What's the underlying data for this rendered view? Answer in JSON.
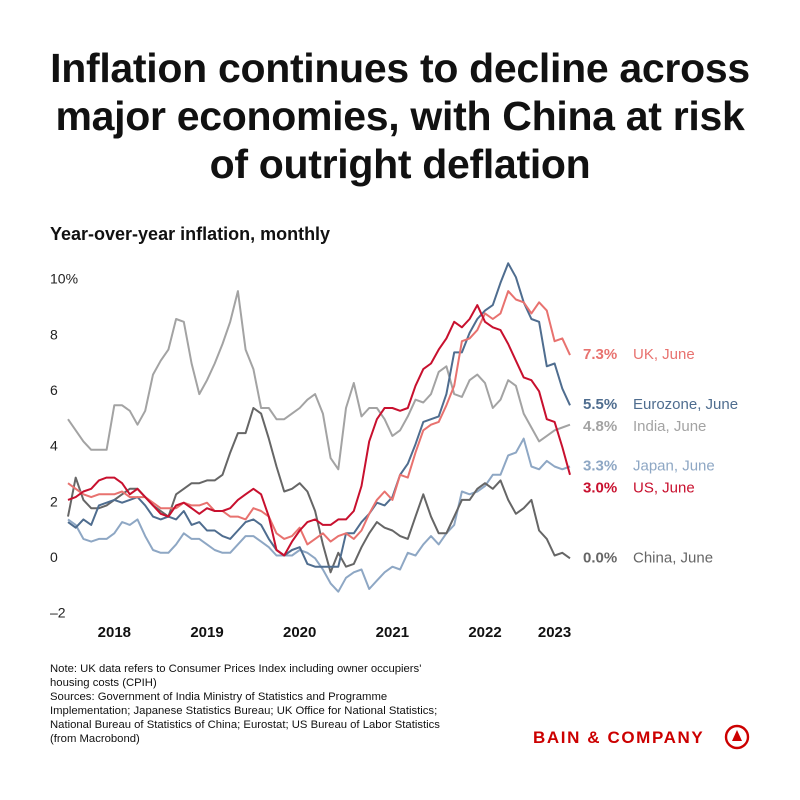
{
  "chart_data": {
    "type": "line",
    "title": "Inflation continues to decline across major economies, with China at risk of outright deflation",
    "subtitle": "Year-over-year inflation, monthly",
    "categories": [
      null,
      null,
      null,
      null,
      null,
      null,
      "2018",
      null,
      null,
      null,
      null,
      null,
      null,
      null,
      null,
      null,
      null,
      null,
      "2019",
      null,
      null,
      null,
      null,
      null,
      null,
      null,
      null,
      null,
      null,
      null,
      "2020",
      null,
      null,
      null,
      null,
      null,
      null,
      null,
      null,
      null,
      null,
      null,
      "2021",
      null,
      null,
      null,
      null,
      null,
      null,
      null,
      null,
      null,
      null,
      null,
      "2022",
      null,
      null,
      null,
      null,
      null,
      null,
      null,
      null,
      "2023",
      null,
      null
    ],
    "ylim": [
      -2,
      10.6
    ],
    "yticks": [
      {
        "value": -2,
        "label": "–2"
      },
      0,
      2,
      4,
      6,
      8,
      {
        "value": 10,
        "label": "10%"
      }
    ],
    "grid": false,
    "series": [
      {
        "name": "India, June",
        "end_label": "4.8%",
        "color": "#a3a3a3",
        "values": [
          5.0,
          4.6,
          4.2,
          3.9,
          3.9,
          3.9,
          5.5,
          5.5,
          5.3,
          4.8,
          5.3,
          6.6,
          7.1,
          7.5,
          8.6,
          8.5,
          7.0,
          5.9,
          6.4,
          7.0,
          7.7,
          8.5,
          9.6,
          7.5,
          6.8,
          5.4,
          5.4,
          5.0,
          5.0,
          5.2,
          5.4,
          5.7,
          5.9,
          5.2,
          3.6,
          3.2,
          5.4,
          6.3,
          5.1,
          5.4,
          5.4,
          5.0,
          4.4,
          4.6,
          5.1,
          5.7,
          5.6,
          5.9,
          6.7,
          6.9,
          5.9,
          5.8,
          6.4,
          6.6,
          6.3,
          5.4,
          5.7,
          6.4,
          6.2,
          5.2,
          4.7,
          4.2,
          4.4,
          4.6,
          4.7,
          4.8
        ]
      },
      {
        "name": "Japan, June",
        "end_label": "3.3%",
        "color": "#8ea7c4",
        "values": [
          1.4,
          1.2,
          0.7,
          0.6,
          0.7,
          0.7,
          0.9,
          1.3,
          1.2,
          1.4,
          0.8,
          0.3,
          0.2,
          0.2,
          0.5,
          0.9,
          0.7,
          0.7,
          0.5,
          0.3,
          0.2,
          0.2,
          0.5,
          0.8,
          0.8,
          0.6,
          0.4,
          0.1,
          0.1,
          0.1,
          0.3,
          0.2,
          0.0,
          -0.4,
          -0.9,
          -1.2,
          -0.7,
          -0.5,
          -0.4,
          -1.1,
          -0.8,
          -0.5,
          -0.3,
          -0.4,
          0.2,
          0.1,
          0.5,
          0.8,
          0.5,
          0.9,
          1.2,
          2.4,
          2.3,
          2.4,
          2.6,
          3.0,
          3.0,
          3.7,
          3.8,
          4.3,
          3.3,
          3.2,
          3.5,
          3.3,
          3.2,
          3.3
        ]
      },
      {
        "name": "China, June",
        "end_label": "0.0%",
        "color": "#666666",
        "values": [
          1.5,
          2.9,
          2.1,
          1.8,
          1.8,
          1.9,
          2.1,
          2.3,
          2.5,
          2.5,
          2.2,
          1.9,
          1.7,
          1.5,
          2.3,
          2.5,
          2.7,
          2.7,
          2.8,
          2.8,
          3.0,
          3.8,
          4.5,
          4.5,
          5.4,
          5.2,
          4.3,
          3.3,
          2.4,
          2.5,
          2.7,
          2.4,
          1.7,
          0.5,
          -0.5,
          0.2,
          -0.3,
          -0.2,
          0.4,
          0.9,
          1.3,
          1.1,
          1.0,
          0.8,
          0.7,
          1.5,
          2.3,
          1.5,
          0.9,
          0.9,
          1.5,
          2.1,
          2.1,
          2.5,
          2.7,
          2.5,
          2.8,
          2.1,
          1.6,
          1.8,
          2.1,
          1.0,
          0.7,
          0.1,
          0.2,
          0.0
        ]
      },
      {
        "name": "Eurozone, June",
        "end_label": "5.5%",
        "color": "#4f6d8f",
        "values": [
          1.3,
          1.1,
          1.4,
          1.2,
          1.9,
          2.0,
          2.1,
          2.0,
          2.1,
          2.2,
          1.9,
          1.5,
          1.4,
          1.5,
          1.4,
          1.7,
          1.2,
          1.3,
          1.0,
          1.0,
          0.8,
          0.7,
          1.0,
          1.3,
          1.4,
          1.2,
          0.7,
          0.3,
          0.1,
          0.3,
          0.4,
          -0.2,
          -0.3,
          -0.3,
          -0.3,
          -0.3,
          0.9,
          0.9,
          1.3,
          1.6,
          2.0,
          1.9,
          2.2,
          3.0,
          3.4,
          4.1,
          4.9,
          5.0,
          5.1,
          5.9,
          7.4,
          7.4,
          8.1,
          8.6,
          8.9,
          9.1,
          9.9,
          10.6,
          10.1,
          9.2,
          8.6,
          8.5,
          6.9,
          7.0,
          6.1,
          5.5
        ]
      },
      {
        "name": "UK, June",
        "end_label": "7.3%",
        "color": "#e8726f",
        "values": [
          2.7,
          2.5,
          2.3,
          2.2,
          2.3,
          2.3,
          2.3,
          2.4,
          2.2,
          2.2,
          2.2,
          2.0,
          1.8,
          1.8,
          1.8,
          2.0,
          1.9,
          1.9,
          2.0,
          1.7,
          1.7,
          1.5,
          1.5,
          1.4,
          1.8,
          1.7,
          1.5,
          0.9,
          0.7,
          0.8,
          1.1,
          0.5,
          0.7,
          0.9,
          0.6,
          0.8,
          0.9,
          0.7,
          1.0,
          1.6,
          2.1,
          2.4,
          2.1,
          3.0,
          2.9,
          3.8,
          4.6,
          4.8,
          4.9,
          5.5,
          6.2,
          7.8,
          7.9,
          8.2,
          8.8,
          8.6,
          8.8,
          9.6,
          9.3,
          9.2,
          8.8,
          9.2,
          8.9,
          7.8,
          7.9,
          7.3
        ]
      },
      {
        "name": "US, June",
        "end_label": "3.0%",
        "color": "#c8102e",
        "values": [
          2.1,
          2.2,
          2.4,
          2.5,
          2.8,
          2.9,
          2.9,
          2.7,
          2.3,
          2.5,
          2.2,
          1.9,
          1.6,
          1.5,
          1.9,
          2.0,
          1.8,
          1.6,
          1.8,
          1.7,
          1.7,
          1.8,
          2.1,
          2.3,
          2.5,
          2.3,
          1.5,
          0.3,
          0.1,
          0.6,
          1.0,
          1.3,
          1.4,
          1.2,
          1.2,
          1.4,
          1.4,
          1.7,
          2.6,
          4.2,
          5.0,
          5.4,
          5.4,
          5.3,
          5.4,
          6.2,
          6.8,
          7.0,
          7.5,
          7.9,
          8.5,
          8.3,
          8.6,
          9.1,
          8.5,
          8.3,
          8.2,
          7.7,
          7.1,
          6.5,
          6.4,
          6.0,
          5.0,
          4.9,
          4.0,
          3.0
        ]
      }
    ]
  },
  "footer": {
    "note": "Note: UK data refers to Consumer Prices Index including owner occupiers' housing costs (CPIH)",
    "sources": "Sources: Government of India Ministry of Statistics and Programme Implementation; Japanese Statistics Bureau; UK Office for National Statistics; National Bureau of Statistics of China; Eurostat; US Bureau of Labor Statistics (from Macrobond)",
    "brand": "BAIN & COMPANY"
  }
}
